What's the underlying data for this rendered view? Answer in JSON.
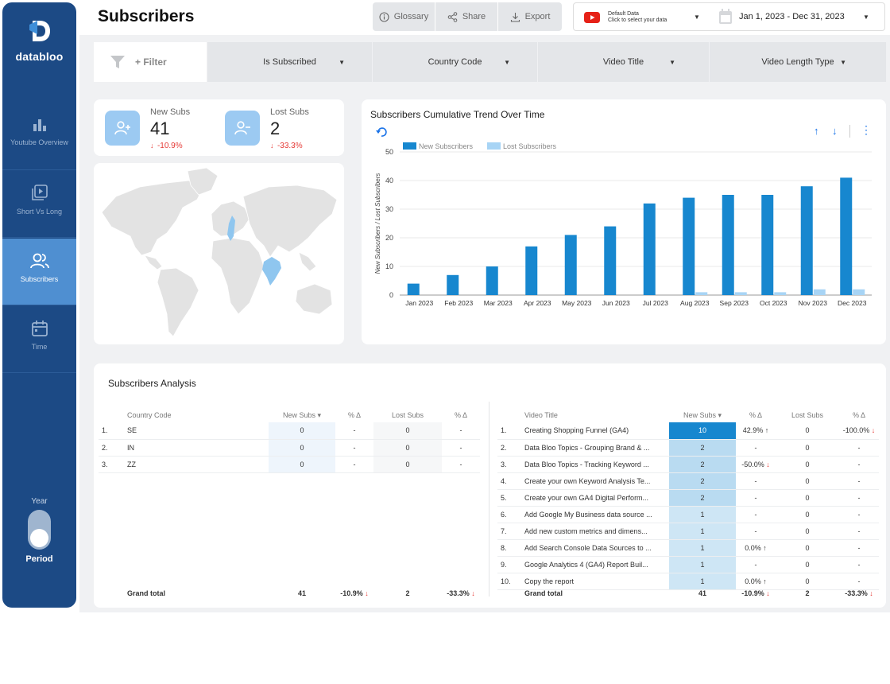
{
  "sidebar": {
    "brand": "databloo",
    "items": [
      {
        "label": "Youtube Overview",
        "active": false
      },
      {
        "label": "Short Vs Long",
        "active": false
      },
      {
        "label": "Subscribers",
        "active": true
      },
      {
        "label": "Time",
        "active": false
      }
    ],
    "year_label": "Year",
    "period_label": "Period"
  },
  "header": {
    "title": "Subscribers",
    "glossary": "Glossary",
    "share": "Share",
    "export": "Export",
    "datasource_title": "Default Data",
    "datasource_sub": "Click to select your data",
    "date_range": "Jan 1, 2023 - Dec 31, 2023"
  },
  "filters": {
    "filter_label": "+ Filter",
    "dropdowns": [
      "Is Subscribed",
      "Country Code",
      "Video Title",
      "Video Length Type"
    ]
  },
  "kpis": [
    {
      "label": "New Subs",
      "value": "41",
      "delta": "-10.9%"
    },
    {
      "label": "Lost Subs",
      "value": "2",
      "delta": "-33.3%"
    }
  ],
  "colors": {
    "new": "#1787cf",
    "lost": "#a7d4f5",
    "sidebar": "#1c4a85",
    "accent": "#4f8fd1",
    "down": "#e53935",
    "up": "#333333"
  },
  "chart_data": {
    "type": "bar",
    "title": "Subscribers Cumulative Trend Over Time",
    "ylabel": "New Subscribers / Lost Subscribers",
    "categories": [
      "Jan 2023",
      "Feb 2023",
      "Mar 2023",
      "Apr 2023",
      "May 2023",
      "Jun 2023",
      "Jul 2023",
      "Aug 2023",
      "Sep 2023",
      "Oct 2023",
      "Nov 2023",
      "Dec 2023"
    ],
    "series": [
      {
        "name": "New Subscribers",
        "values": [
          4,
          7,
          10,
          17,
          21,
          24,
          32,
          34,
          35,
          35,
          38,
          41
        ]
      },
      {
        "name": "Lost Subscribers",
        "values": [
          0,
          0,
          0,
          0,
          0,
          0,
          0,
          1,
          1,
          1,
          2,
          2
        ]
      }
    ],
    "ylim": [
      0,
      50
    ],
    "yticks": [
      0,
      10,
      20,
      30,
      40,
      50
    ],
    "legend": "top-left",
    "grid": true
  },
  "analysis": {
    "title": "Subscribers Analysis",
    "country_table": {
      "headers": [
        "",
        "Country Code",
        "New Subs ▾",
        "% Δ",
        "Lost Subs",
        "% Δ"
      ],
      "rows": [
        [
          "1.",
          "SE",
          "0",
          "-",
          "0",
          "-"
        ],
        [
          "2.",
          "IN",
          "0",
          "-",
          "0",
          "-"
        ],
        [
          "3.",
          "ZZ",
          "0",
          "-",
          "0",
          "-"
        ]
      ],
      "total": [
        "",
        "Grand total",
        "41",
        "-10.9%",
        "2",
        "-33.3%"
      ]
    },
    "video_table": {
      "headers": [
        "",
        "Video Title",
        "New Subs ▾",
        "% Δ",
        "Lost Subs",
        "% Δ"
      ],
      "rows": [
        [
          "1.",
          "Creating Shopping Funnel (GA4)",
          "10",
          "42.9%",
          "0",
          "-100.0%"
        ],
        [
          "2.",
          "Data Bloo Topics - Grouping Brand & ...",
          "2",
          "-",
          "0",
          "-"
        ],
        [
          "3.",
          "Data Bloo Topics - Tracking Keyword ...",
          "2",
          "-50.0%",
          "0",
          "-"
        ],
        [
          "4.",
          "Create your own Keyword Analysis Te...",
          "2",
          "-",
          "0",
          "-"
        ],
        [
          "5.",
          "Create your own GA4 Digital Perform...",
          "2",
          "-",
          "0",
          "-"
        ],
        [
          "6.",
          "Add Google My Business data source ...",
          "1",
          "-",
          "0",
          "-"
        ],
        [
          "7.",
          "Add new custom metrics and dimens...",
          "1",
          "-",
          "0",
          "-"
        ],
        [
          "8.",
          "Add Search Console Data Sources to ...",
          "1",
          "0.0%",
          "0",
          "-"
        ],
        [
          "9.",
          "Google Analytics 4 (GA4) Report Buil...",
          "1",
          "-",
          "0",
          "-"
        ],
        [
          "10.",
          "Copy the report",
          "1",
          "0.0%",
          "0",
          "-"
        ]
      ],
      "total": [
        "",
        "Grand total",
        "41",
        "-10.9%",
        "2",
        "-33.3%"
      ]
    }
  }
}
